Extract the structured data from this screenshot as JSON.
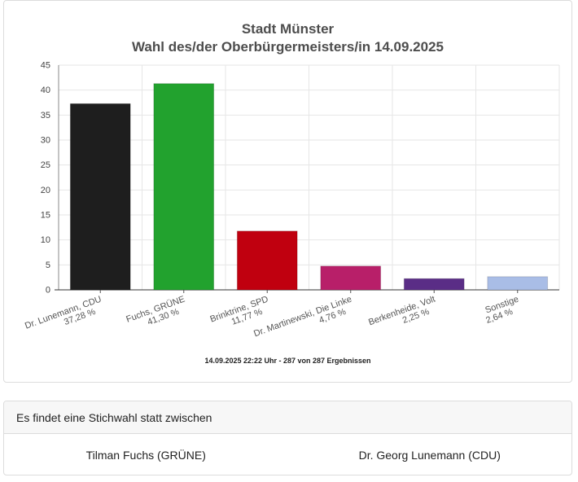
{
  "chart_data": {
    "type": "bar",
    "title": "Stadt Münster",
    "subtitle": "Wahl des/der Oberbürgermeisters/in 14.09.2025",
    "categories": [
      {
        "name": "Dr. Lunemann, CDU",
        "value_label": "37,28 %"
      },
      {
        "name": "Fuchs, GRÜNE",
        "value_label": "41,30 %"
      },
      {
        "name": "Brinktrine, SPD",
        "value_label": "11,77 %"
      },
      {
        "name": "Dr. Martinewski, Die Linke",
        "value_label": "4,76 %"
      },
      {
        "name": "Berkenheide, Volt",
        "value_label": "2,25 %"
      },
      {
        "name": "Sonstige",
        "value_label": "2,64 %"
      }
    ],
    "values": [
      37.28,
      41.3,
      11.77,
      4.76,
      2.25,
      2.64
    ],
    "colors": [
      "#1e1e1e",
      "#22a22e",
      "#c0000f",
      "#b81f69",
      "#5a2d86",
      "#a9bde6"
    ],
    "ylim": [
      0,
      45
    ],
    "yticks": [
      0,
      5,
      10,
      15,
      20,
      25,
      30,
      35,
      40,
      45
    ],
    "grid": true,
    "footnote": "14.09.2025 22:22 Uhr - 287 von 287 Ergebnissen"
  },
  "runoff": {
    "header": "Es findet eine Stichwahl statt zwischen",
    "candidates": [
      "Tilman Fuchs (GRÜNE)",
      "Dr. Georg Lunemann (CDU)"
    ]
  }
}
